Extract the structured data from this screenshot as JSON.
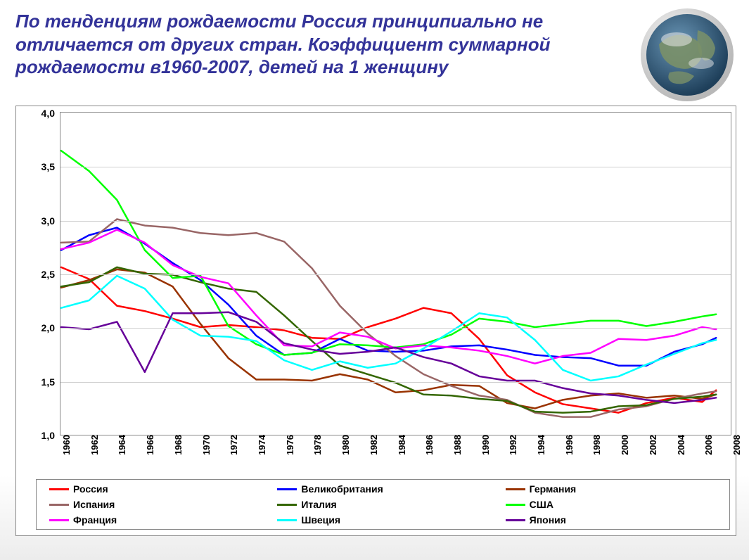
{
  "title_text": "По тенденциям рождаемости Россия принципиально не отличается от других стран. Коэффициент суммарной рождаемости в1960-2007, детей на 1 женщину",
  "title_color": "#333399",
  "title_fontsize": 26,
  "background_color": "#ffffff",
  "globe": {
    "outer_color": "#d8d8d8",
    "ocean_color": "#2f5f8a",
    "land_color": "#8aa07a",
    "cloud_color": "#e8e8e8"
  },
  "chart": {
    "type": "line",
    "ylim": [
      1.0,
      4.0
    ],
    "ytick_step": 0.5,
    "yticks": [
      "1,0",
      "1,5",
      "2,0",
      "2,5",
      "3,0",
      "3,5",
      "4,0"
    ],
    "xlim": [
      1960,
      2008
    ],
    "xtick_step": 2,
    "xticks": [
      "1960",
      "1962",
      "1964",
      "1966",
      "1968",
      "1970",
      "1972",
      "1974",
      "1976",
      "1978",
      "1980",
      "1982",
      "1984",
      "1986",
      "1988",
      "1990",
      "1992",
      "1994",
      "1996",
      "1998",
      "2000",
      "2002",
      "2004",
      "2006",
      "2008"
    ],
    "grid_color": "#cfcfcf",
    "border_color": "#888888",
    "line_width": 2.5,
    "label_fontsize": 14,
    "tick_fontsize": 13,
    "series": [
      {
        "name": "Россия",
        "color": "#ff0000",
        "x": [
          1960,
          1962,
          1964,
          1966,
          1968,
          1970,
          1972,
          1974,
          1976,
          1978,
          1980,
          1982,
          1984,
          1986,
          1988,
          1990,
          1992,
          1994,
          1996,
          1998,
          2000,
          2002,
          2004,
          2006,
          2007
        ],
        "y": [
          2.56,
          2.45,
          2.2,
          2.15,
          2.08,
          2.0,
          2.02,
          2.0,
          1.97,
          1.9,
          1.89,
          2.0,
          2.08,
          2.18,
          2.13,
          1.89,
          1.55,
          1.39,
          1.28,
          1.24,
          1.2,
          1.29,
          1.34,
          1.3,
          1.41
        ]
      },
      {
        "name": "Великобритания",
        "color": "#0000ff",
        "x": [
          1960,
          1962,
          1964,
          1966,
          1968,
          1970,
          1972,
          1974,
          1976,
          1978,
          1980,
          1982,
          1984,
          1986,
          1988,
          1990,
          1992,
          1994,
          1996,
          1998,
          2000,
          2002,
          2004,
          2006,
          2007
        ],
        "y": [
          2.72,
          2.86,
          2.93,
          2.78,
          2.6,
          2.44,
          2.21,
          1.92,
          1.74,
          1.76,
          1.89,
          1.78,
          1.77,
          1.78,
          1.82,
          1.83,
          1.79,
          1.74,
          1.72,
          1.71,
          1.64,
          1.64,
          1.77,
          1.84,
          1.9
        ]
      },
      {
        "name": "Германия",
        "color": "#993300",
        "x": [
          1960,
          1962,
          1964,
          1966,
          1968,
          1970,
          1972,
          1974,
          1976,
          1978,
          1980,
          1982,
          1984,
          1986,
          1988,
          1990,
          1992,
          1994,
          1996,
          1998,
          2000,
          2002,
          2004,
          2006,
          2007
        ],
        "y": [
          2.37,
          2.44,
          2.54,
          2.51,
          2.38,
          2.03,
          1.71,
          1.51,
          1.51,
          1.5,
          1.56,
          1.51,
          1.39,
          1.41,
          1.46,
          1.45,
          1.29,
          1.24,
          1.32,
          1.36,
          1.38,
          1.34,
          1.36,
          1.33,
          1.37
        ]
      },
      {
        "name": "Испания",
        "color": "#996666",
        "x": [
          1960,
          1962,
          1964,
          1966,
          1968,
          1970,
          1972,
          1974,
          1976,
          1978,
          1980,
          1982,
          1984,
          1986,
          1988,
          1990,
          1992,
          1994,
          1996,
          1998,
          2000,
          2002,
          2004,
          2006,
          2007
        ],
        "y": [
          2.79,
          2.8,
          3.01,
          2.95,
          2.93,
          2.88,
          2.86,
          2.88,
          2.8,
          2.55,
          2.2,
          1.94,
          1.73,
          1.56,
          1.45,
          1.36,
          1.32,
          1.2,
          1.16,
          1.16,
          1.23,
          1.26,
          1.33,
          1.38,
          1.4
        ]
      },
      {
        "name": "Италия",
        "color": "#336600",
        "x": [
          1960,
          1962,
          1964,
          1966,
          1968,
          1970,
          1972,
          1974,
          1976,
          1978,
          1980,
          1982,
          1984,
          1986,
          1988,
          1990,
          1992,
          1994,
          1996,
          1998,
          2000,
          2002,
          2004,
          2006,
          2007
        ],
        "y": [
          2.38,
          2.42,
          2.56,
          2.5,
          2.49,
          2.42,
          2.36,
          2.33,
          2.11,
          1.87,
          1.64,
          1.56,
          1.48,
          1.37,
          1.36,
          1.33,
          1.31,
          1.21,
          1.2,
          1.21,
          1.26,
          1.27,
          1.33,
          1.35,
          1.37
        ]
      },
      {
        "name": "США",
        "color": "#00ff00",
        "x": [
          1960,
          1962,
          1964,
          1966,
          1968,
          1970,
          1972,
          1974,
          1976,
          1978,
          1980,
          1982,
          1984,
          1986,
          1988,
          1990,
          1992,
          1994,
          1996,
          1998,
          2000,
          2002,
          2004,
          2006,
          2007
        ],
        "y": [
          3.65,
          3.46,
          3.19,
          2.72,
          2.46,
          2.48,
          2.01,
          1.84,
          1.74,
          1.76,
          1.84,
          1.83,
          1.81,
          1.84,
          1.93,
          2.08,
          2.05,
          2.0,
          2.03,
          2.06,
          2.06,
          2.01,
          2.05,
          2.1,
          2.12
        ]
      },
      {
        "name": "Франция",
        "color": "#ff00ff",
        "x": [
          1960,
          1962,
          1964,
          1966,
          1968,
          1970,
          1972,
          1974,
          1976,
          1978,
          1980,
          1982,
          1984,
          1986,
          1988,
          1990,
          1992,
          1994,
          1996,
          1998,
          2000,
          2002,
          2004,
          2006,
          2007
        ],
        "y": [
          2.73,
          2.79,
          2.91,
          2.79,
          2.58,
          2.47,
          2.41,
          2.11,
          1.83,
          1.82,
          1.95,
          1.91,
          1.8,
          1.83,
          1.81,
          1.78,
          1.73,
          1.66,
          1.73,
          1.76,
          1.89,
          1.88,
          1.92,
          2.0,
          1.98
        ]
      },
      {
        "name": "Швеция",
        "color": "#00ffff",
        "x": [
          1960,
          1962,
          1964,
          1966,
          1968,
          1970,
          1972,
          1974,
          1976,
          1978,
          1980,
          1982,
          1984,
          1986,
          1988,
          1990,
          1992,
          1994,
          1996,
          1998,
          2000,
          2002,
          2004,
          2006,
          2007
        ],
        "y": [
          2.18,
          2.25,
          2.48,
          2.36,
          2.07,
          1.92,
          1.91,
          1.87,
          1.69,
          1.6,
          1.68,
          1.62,
          1.66,
          1.8,
          1.96,
          2.13,
          2.09,
          1.88,
          1.6,
          1.5,
          1.54,
          1.65,
          1.75,
          1.85,
          1.88
        ]
      },
      {
        "name": "Япония",
        "color": "#660099",
        "x": [
          1960,
          1962,
          1964,
          1966,
          1968,
          1970,
          1972,
          1974,
          1976,
          1978,
          1980,
          1982,
          1984,
          1986,
          1988,
          1990,
          1992,
          1994,
          1996,
          1998,
          2000,
          2002,
          2004,
          2006,
          2007
        ],
        "y": [
          2.0,
          1.98,
          2.05,
          1.58,
          2.13,
          2.13,
          2.14,
          2.05,
          1.85,
          1.79,
          1.75,
          1.77,
          1.81,
          1.72,
          1.66,
          1.54,
          1.5,
          1.5,
          1.43,
          1.38,
          1.36,
          1.32,
          1.29,
          1.32,
          1.34
        ]
      }
    ]
  }
}
